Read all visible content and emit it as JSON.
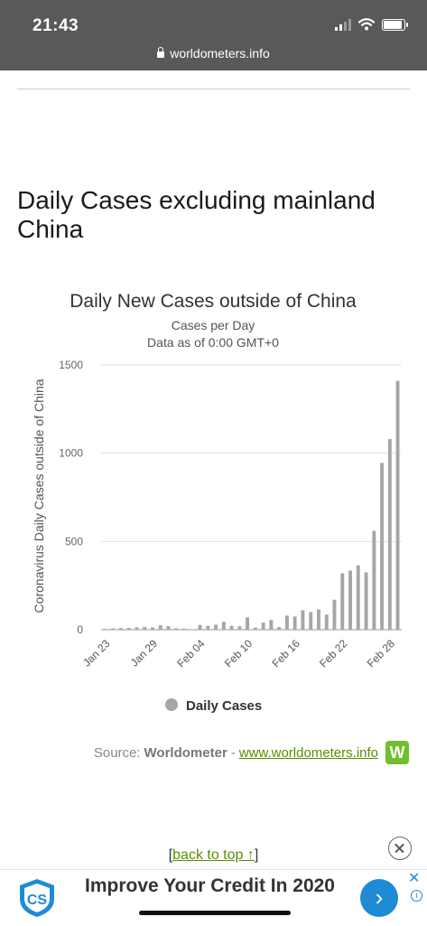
{
  "status_bar": {
    "time": "21:43",
    "url": "worldometers.info"
  },
  "section": {
    "title": "Daily Cases excluding mainland China"
  },
  "chart_data": {
    "type": "bar",
    "title": "Daily New Cases outside of China",
    "subtitle_1": "Cases per Day",
    "subtitle_2": "Data as of 0:00 GMT+0",
    "ylabel": "Coronavirus Daily Cases outside of China",
    "ylim": [
      0,
      1500
    ],
    "yticks": [
      0,
      500,
      1000,
      1500
    ],
    "xtick_labels": [
      "Jan 23",
      "Jan 29",
      "Feb 04",
      "Feb 10",
      "Feb 16",
      "Feb 22",
      "Feb 28"
    ],
    "xtick_indices": [
      0,
      6,
      12,
      18,
      24,
      30,
      36
    ],
    "categories": [
      "Jan 23",
      "Jan 24",
      "Jan 25",
      "Jan 26",
      "Jan 27",
      "Jan 28",
      "Jan 29",
      "Jan 30",
      "Jan 31",
      "Feb 01",
      "Feb 02",
      "Feb 03",
      "Feb 04",
      "Feb 05",
      "Feb 06",
      "Feb 07",
      "Feb 08",
      "Feb 09",
      "Feb 10",
      "Feb 11",
      "Feb 12",
      "Feb 13",
      "Feb 14",
      "Feb 15",
      "Feb 16",
      "Feb 17",
      "Feb 18",
      "Feb 19",
      "Feb 20",
      "Feb 21",
      "Feb 22",
      "Feb 23",
      "Feb 24",
      "Feb 25",
      "Feb 26",
      "Feb 27",
      "Feb 28",
      "Feb 29"
    ],
    "series": [
      {
        "name": "Daily Cases",
        "color": "#a6a6a6",
        "values": [
          4,
          7,
          9,
          10,
          14,
          16,
          13,
          25,
          20,
          8,
          6,
          2,
          27,
          22,
          28,
          45,
          22,
          20,
          70,
          12,
          40,
          55,
          15,
          80,
          75,
          110,
          100,
          115,
          85,
          170,
          320,
          335,
          365,
          325,
          560,
          945,
          1080,
          1410
        ]
      }
    ],
    "legend_position": "bottom",
    "grid": true
  },
  "source": {
    "label": "Source:",
    "name": "Worldometer",
    "separator": "-",
    "link": "www.worldometers.info",
    "logo_letter": "W"
  },
  "back_to_top": {
    "open": "[",
    "label": "back to top ↑",
    "close": "]"
  },
  "ad": {
    "text": "Improve Your Credit In 2020",
    "logo_letters": "CS",
    "cta_icon": "›",
    "close_icon": "✕",
    "info_icon": "i"
  }
}
